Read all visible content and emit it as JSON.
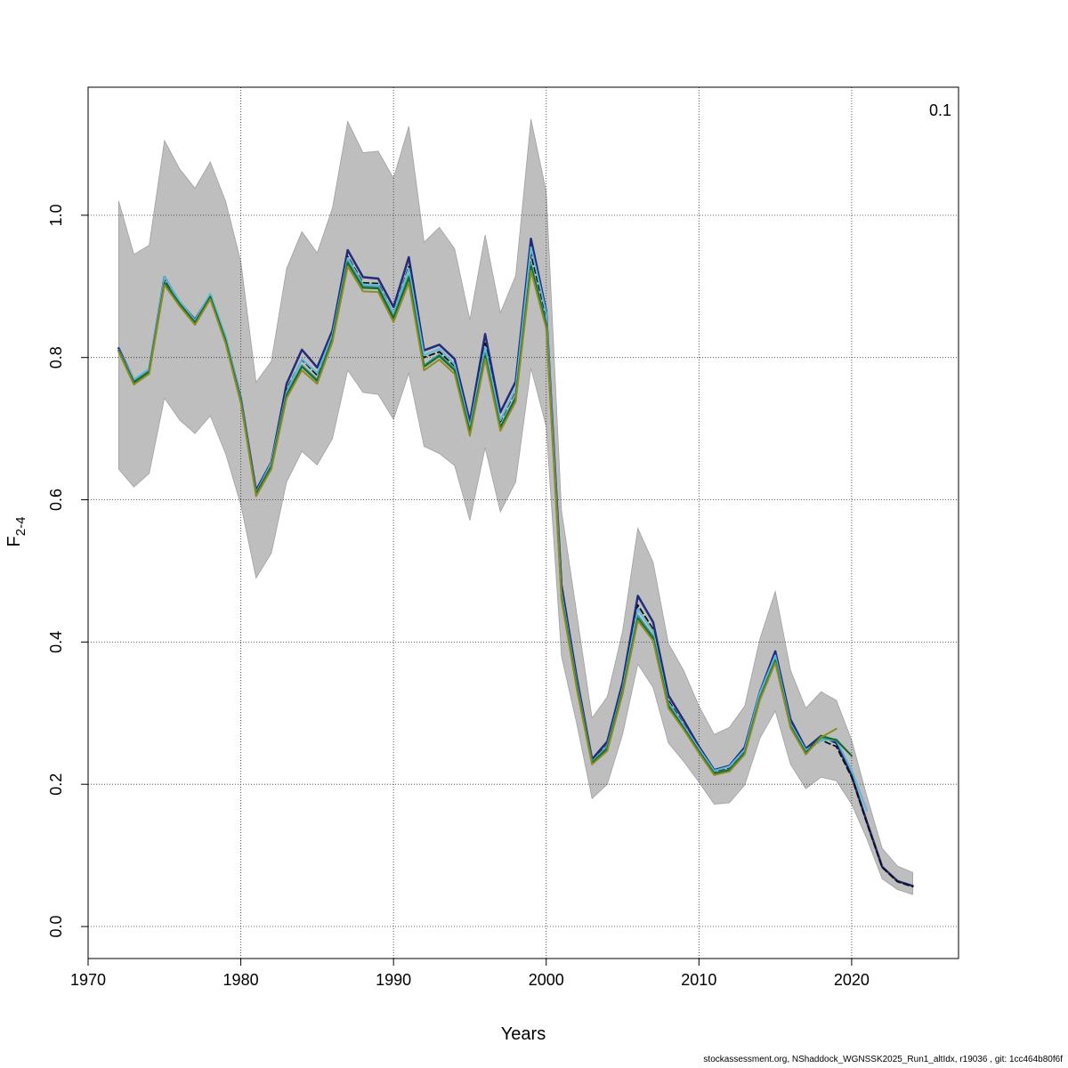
{
  "chart_data": {
    "type": "line",
    "xlabel": "Years",
    "ylabel": {
      "main": "F",
      "sub": "2-4"
    },
    "corner_label": "0.1",
    "xlim": [
      1970,
      2027
    ],
    "ylim": [
      -0.045,
      1.18
    ],
    "x_ticks": [
      1970,
      1980,
      1990,
      2000,
      2010,
      2020
    ],
    "y_ticks": [
      0.0,
      0.2,
      0.4,
      0.6,
      0.8,
      1.0
    ],
    "y_tick_labels": [
      "0.0",
      "0.2",
      "0.4",
      "0.6",
      "0.8",
      "1.0"
    ],
    "grid": true,
    "ci_band": {
      "color": "#bebebe",
      "years": [
        1972,
        1973,
        1974,
        1975,
        1976,
        1977,
        1978,
        1979,
        1980,
        1981,
        1982,
        1983,
        1984,
        1985,
        1986,
        1987,
        1988,
        1989,
        1990,
        1991,
        1992,
        1993,
        1994,
        1995,
        1996,
        1997,
        1998,
        1999,
        2000,
        2001,
        2002,
        2003,
        2004,
        2005,
        2006,
        2007,
        2008,
        2009,
        2010,
        2011,
        2012,
        2013,
        2014,
        2015,
        2016,
        2017,
        2018,
        2019,
        2020,
        2021,
        2022,
        2023,
        2024
      ],
      "upper": [
        1.02,
        0.945,
        0.958,
        1.105,
        1.065,
        1.038,
        1.075,
        1.02,
        0.935,
        0.765,
        0.795,
        0.925,
        0.977,
        0.947,
        1.01,
        1.132,
        1.088,
        1.09,
        1.052,
        1.125,
        0.962,
        0.983,
        0.953,
        0.853,
        0.972,
        0.863,
        0.915,
        1.135,
        1.033,
        0.585,
        0.44,
        0.293,
        0.323,
        0.415,
        0.56,
        0.512,
        0.398,
        0.36,
        0.31,
        0.27,
        0.28,
        0.31,
        0.405,
        0.471,
        0.36,
        0.307,
        0.33,
        0.318,
        0.262,
        0.183,
        0.11,
        0.085,
        0.076
      ],
      "lower": [
        0.643,
        0.618,
        0.637,
        0.743,
        0.712,
        0.693,
        0.718,
        0.665,
        0.593,
        0.49,
        0.525,
        0.625,
        0.668,
        0.649,
        0.686,
        0.782,
        0.751,
        0.748,
        0.713,
        0.778,
        0.675,
        0.665,
        0.648,
        0.571,
        0.673,
        0.583,
        0.625,
        0.785,
        0.703,
        0.38,
        0.285,
        0.18,
        0.2,
        0.27,
        0.369,
        0.336,
        0.258,
        0.232,
        0.203,
        0.172,
        0.174,
        0.199,
        0.265,
        0.303,
        0.228,
        0.194,
        0.21,
        0.205,
        0.172,
        0.123,
        0.067,
        0.052,
        0.045
      ]
    },
    "series": [
      {
        "color": "#232b7b",
        "dashed": false,
        "width": 2.5,
        "x": [
          1972,
          1973,
          1974,
          1975,
          1976,
          1977,
          1978,
          1979,
          1980,
          1981,
          1982,
          1983,
          1984,
          1985,
          1986,
          1987,
          1988,
          1989,
          1990,
          1991,
          1992,
          1993,
          1994,
          1995,
          1996,
          1997,
          1998,
          1999,
          2000,
          2001,
          2002,
          2003,
          2004,
          2005,
          2006,
          2007,
          2008,
          2009,
          2010,
          2011,
          2012,
          2013,
          2014,
          2015,
          2016,
          2017,
          2018,
          2019,
          2020,
          2021,
          2022,
          2023,
          2024
        ],
        "values": [
          0.813,
          0.768,
          0.783,
          0.913,
          0.878,
          0.853,
          0.888,
          0.828,
          0.743,
          0.613,
          0.653,
          0.763,
          0.811,
          0.786,
          0.838,
          0.951,
          0.913,
          0.911,
          0.871,
          0.941,
          0.81,
          0.818,
          0.798,
          0.71,
          0.833,
          0.723,
          0.766,
          0.967,
          0.865,
          0.48,
          0.35,
          0.235,
          0.26,
          0.343,
          0.465,
          0.428,
          0.325,
          0.29,
          0.253,
          0.22,
          0.226,
          0.252,
          0.33,
          0.387,
          0.291,
          0.25,
          0.268,
          0.258,
          0.212,
          0.147,
          0.084,
          0.064,
          0.057
        ]
      },
      {
        "color": "#0d0d0d",
        "dashed": true,
        "width": 1.8,
        "x": [
          1972,
          1973,
          1974,
          1975,
          1976,
          1977,
          1978,
          1979,
          1980,
          1981,
          1982,
          1983,
          1984,
          1985,
          1986,
          1987,
          1988,
          1989,
          1990,
          1991,
          1992,
          1993,
          1994,
          1995,
          1996,
          1997,
          1998,
          1999,
          2000,
          2001,
          2002,
          2003,
          2004,
          2005,
          2006,
          2007,
          2008,
          2009,
          2010,
          2011,
          2012,
          2013,
          2014,
          2015,
          2016,
          2017,
          2018,
          2019,
          2020,
          2021,
          2022,
          2023,
          2024
        ],
        "values": [
          0.81,
          0.766,
          0.781,
          0.91,
          0.876,
          0.851,
          0.886,
          0.826,
          0.741,
          0.61,
          0.65,
          0.755,
          0.797,
          0.775,
          0.832,
          0.942,
          0.905,
          0.904,
          0.862,
          0.928,
          0.8,
          0.808,
          0.788,
          0.702,
          0.82,
          0.71,
          0.754,
          0.945,
          0.858,
          0.473,
          0.345,
          0.233,
          0.255,
          0.337,
          0.452,
          0.418,
          0.318,
          0.284,
          0.249,
          0.217,
          0.222,
          0.247,
          0.324,
          0.38,
          0.285,
          0.246,
          0.262,
          0.253,
          0.21,
          0.145,
          0.083,
          0.063,
          0.056
        ]
      },
      {
        "color": "#5fb8d8",
        "dashed": false,
        "width": 2,
        "x": [
          1972,
          1973,
          1974,
          1975,
          1976,
          1977,
          1978,
          1979,
          1980,
          1981,
          1982,
          1983,
          1984,
          1985,
          1986,
          1987,
          1988,
          1989,
          1990,
          1991,
          1992,
          1993,
          1994,
          1995,
          1996,
          1997,
          1998,
          1999,
          2000,
          2001,
          2002,
          2003,
          2004,
          2005,
          2006,
          2007,
          2008,
          2009,
          2010,
          2011,
          2012,
          2013,
          2014,
          2015,
          2016,
          2017,
          2018,
          2019,
          2020,
          2021
        ],
        "values": [
          0.811,
          0.769,
          0.784,
          0.913,
          0.879,
          0.852,
          0.89,
          0.83,
          0.742,
          0.61,
          0.652,
          0.752,
          0.798,
          0.778,
          0.832,
          0.94,
          0.903,
          0.902,
          0.862,
          0.925,
          0.803,
          0.812,
          0.79,
          0.702,
          0.815,
          0.712,
          0.756,
          0.955,
          0.862,
          0.47,
          0.343,
          0.232,
          0.254,
          0.335,
          0.447,
          0.415,
          0.315,
          0.283,
          0.25,
          0.219,
          0.225,
          0.249,
          0.329,
          0.381,
          0.285,
          0.248,
          0.262,
          0.262,
          0.22,
          0.163
        ]
      },
      {
        "color": "#2a9a8a",
        "dashed": false,
        "width": 2,
        "x": [
          1972,
          1973,
          1974,
          1975,
          1976,
          1977,
          1978,
          1979,
          1980,
          1981,
          1982,
          1983,
          1984,
          1985,
          1986,
          1987,
          1988,
          1989,
          1990,
          1991,
          1992,
          1993,
          1994,
          1995,
          1996,
          1997,
          1998,
          1999,
          2000,
          2001,
          2002,
          2003,
          2004,
          2005,
          2006,
          2007,
          2008,
          2009,
          2010,
          2011,
          2012,
          2013,
          2014,
          2015,
          2016,
          2017,
          2018,
          2019,
          2020
        ],
        "values": [
          0.81,
          0.766,
          0.781,
          0.906,
          0.876,
          0.85,
          0.886,
          0.825,
          0.74,
          0.609,
          0.648,
          0.748,
          0.789,
          0.769,
          0.828,
          0.935,
          0.9,
          0.899,
          0.857,
          0.915,
          0.789,
          0.804,
          0.784,
          0.697,
          0.806,
          0.703,
          0.745,
          0.932,
          0.849,
          0.465,
          0.34,
          0.231,
          0.252,
          0.332,
          0.437,
          0.408,
          0.312,
          0.28,
          0.247,
          0.216,
          0.221,
          0.245,
          0.323,
          0.375,
          0.282,
          0.245,
          0.265,
          0.263,
          0.24
        ]
      },
      {
        "color": "#18682d",
        "dashed": false,
        "width": 2,
        "x": [
          1972,
          1973,
          1974,
          1975,
          1976,
          1977,
          1978,
          1979,
          1980,
          1981,
          1982,
          1983,
          1984,
          1985,
          1986,
          1987,
          1988,
          1989,
          1990,
          1991,
          1992,
          1993,
          1994,
          1995,
          1996,
          1997,
          1998,
          1999,
          2000,
          2001,
          2002,
          2003,
          2004,
          2005,
          2006,
          2007,
          2008,
          2009,
          2010,
          2011,
          2012,
          2013,
          2014,
          2015,
          2016,
          2017,
          2018,
          2019,
          2020
        ],
        "values": [
          0.81,
          0.765,
          0.78,
          0.905,
          0.875,
          0.849,
          0.885,
          0.824,
          0.739,
          0.608,
          0.647,
          0.747,
          0.787,
          0.767,
          0.826,
          0.933,
          0.898,
          0.897,
          0.855,
          0.912,
          0.787,
          0.802,
          0.782,
          0.695,
          0.802,
          0.701,
          0.743,
          0.928,
          0.846,
          0.463,
          0.338,
          0.23,
          0.25,
          0.33,
          0.433,
          0.405,
          0.31,
          0.279,
          0.246,
          0.215,
          0.22,
          0.244,
          0.321,
          0.373,
          0.281,
          0.244,
          0.268,
          0.262,
          0.24
        ]
      },
      {
        "color": "#8c8c23",
        "dashed": false,
        "width": 2,
        "x": [
          1972,
          1973,
          1974,
          1975,
          1976,
          1977,
          1978,
          1979,
          1980,
          1981,
          1982,
          1983,
          1984,
          1985,
          1986,
          1987,
          1988,
          1989,
          1990,
          1991,
          1992,
          1993,
          1994,
          1995,
          1996,
          1997,
          1998,
          1999,
          2000,
          2001,
          2002,
          2003,
          2004,
          2005,
          2006,
          2007,
          2008,
          2009,
          2010,
          2011,
          2012,
          2013,
          2014,
          2015,
          2016,
          2017,
          2018,
          2019
        ],
        "values": [
          0.808,
          0.762,
          0.777,
          0.902,
          0.872,
          0.846,
          0.882,
          0.82,
          0.736,
          0.605,
          0.643,
          0.743,
          0.782,
          0.763,
          0.822,
          0.928,
          0.893,
          0.892,
          0.85,
          0.905,
          0.782,
          0.797,
          0.777,
          0.69,
          0.798,
          0.697,
          0.738,
          0.922,
          0.841,
          0.46,
          0.334,
          0.228,
          0.247,
          0.327,
          0.43,
          0.402,
          0.307,
          0.277,
          0.244,
          0.213,
          0.218,
          0.242,
          0.319,
          0.371,
          0.279,
          0.242,
          0.266,
          0.278
        ]
      }
    ]
  },
  "footer": "stockassessment.org, NShaddock_WGNSSK2025_Run1_altIdx, r19036 , git: 1cc464b80f6f"
}
